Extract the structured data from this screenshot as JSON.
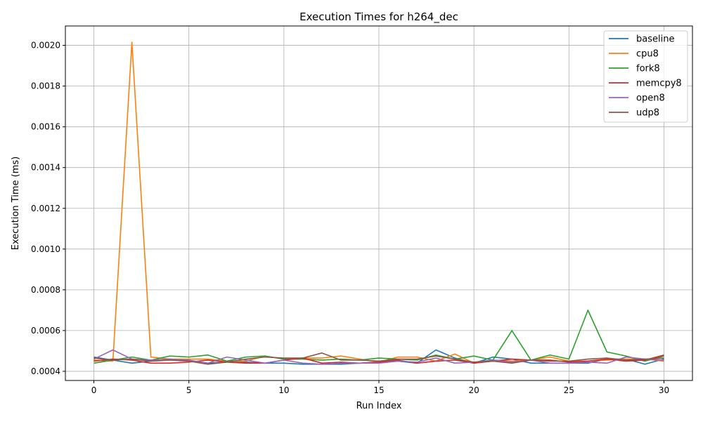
{
  "chart_data": {
    "type": "line",
    "title": "Execution Times for h264_dec",
    "xlabel": "Run Index",
    "ylabel": "Execution Time (ms)",
    "xlim": [
      -1.5,
      31.5
    ],
    "ylim": [
      0.000355,
      0.002095
    ],
    "xticks": [
      0,
      5,
      10,
      15,
      20,
      25,
      30
    ],
    "xtick_labels": [
      "0",
      "5",
      "10",
      "15",
      "20",
      "25",
      "30"
    ],
    "yticks": [
      0.0004,
      0.0006,
      0.0008,
      0.001,
      0.0012,
      0.0014,
      0.0016,
      0.0018,
      0.002
    ],
    "ytick_labels": [
      "0.0004",
      "0.0006",
      "0.0008",
      "0.0010",
      "0.0012",
      "0.0014",
      "0.0016",
      "0.0018",
      "0.0020"
    ],
    "grid": true,
    "legend_position": "top-right",
    "x": [
      0,
      1,
      2,
      3,
      4,
      5,
      6,
      7,
      8,
      9,
      10,
      11,
      12,
      13,
      14,
      15,
      16,
      17,
      18,
      19,
      20,
      21,
      22,
      23,
      24,
      25,
      26,
      27,
      28,
      29,
      30
    ],
    "series": [
      {
        "name": "baseline",
        "color": "#1f77b4",
        "values": [
          0.00047,
          0.000455,
          0.00044,
          0.00045,
          0.00046,
          0.00045,
          0.00044,
          0.000445,
          0.000445,
          0.00044,
          0.00044,
          0.000435,
          0.000435,
          0.000435,
          0.00044,
          0.000445,
          0.00045,
          0.00044,
          0.000505,
          0.000465,
          0.00044,
          0.00047,
          0.00046,
          0.00044,
          0.00044,
          0.00044,
          0.00044,
          0.00046,
          0.00046,
          0.000435,
          0.00046
        ]
      },
      {
        "name": "cpu8",
        "color": "#ff7f0e",
        "values": [
          0.000455,
          0.00045,
          0.002015,
          0.00047,
          0.00046,
          0.00046,
          0.00046,
          0.00045,
          0.00045,
          0.000475,
          0.00046,
          0.000465,
          0.000465,
          0.000475,
          0.00046,
          0.000445,
          0.00047,
          0.00047,
          0.00045,
          0.000485,
          0.00044,
          0.000455,
          0.00045,
          0.000455,
          0.00047,
          0.00045,
          0.00045,
          0.000455,
          0.00046,
          0.00046,
          0.00045
        ]
      },
      {
        "name": "fork8",
        "color": "#2ca02c",
        "values": [
          0.00044,
          0.000455,
          0.00047,
          0.000455,
          0.000475,
          0.00047,
          0.00048,
          0.00045,
          0.00047,
          0.000475,
          0.00046,
          0.00046,
          0.000455,
          0.00046,
          0.000455,
          0.000465,
          0.00046,
          0.000455,
          0.00048,
          0.00046,
          0.000475,
          0.000455,
          0.0006,
          0.000455,
          0.00048,
          0.00046,
          0.0007,
          0.000495,
          0.000475,
          0.00045,
          0.000475
        ]
      },
      {
        "name": "memcpy8",
        "color": "#d62728",
        "values": [
          0.00045,
          0.00046,
          0.000455,
          0.00044,
          0.00044,
          0.000445,
          0.000455,
          0.000445,
          0.00044,
          0.00044,
          0.000455,
          0.000465,
          0.00044,
          0.000445,
          0.00044,
          0.000445,
          0.000455,
          0.00044,
          0.00045,
          0.000455,
          0.00044,
          0.00045,
          0.00046,
          0.000455,
          0.000455,
          0.000445,
          0.00045,
          0.00046,
          0.00045,
          0.000455,
          0.00048
        ]
      },
      {
        "name": "open8",
        "color": "#9467bd",
        "values": [
          0.00046,
          0.000505,
          0.00046,
          0.000455,
          0.00046,
          0.000455,
          0.00044,
          0.00047,
          0.000455,
          0.00044,
          0.000455,
          0.00044,
          0.000435,
          0.00044,
          0.00044,
          0.00044,
          0.00045,
          0.000445,
          0.000465,
          0.00044,
          0.000445,
          0.000455,
          0.000445,
          0.000455,
          0.00044,
          0.00044,
          0.000445,
          0.00044,
          0.00047,
          0.00046,
          0.000455
        ]
      },
      {
        "name": "udp8",
        "color": "#8c564b",
        "values": [
          0.000465,
          0.000455,
          0.00046,
          0.00045,
          0.000455,
          0.00045,
          0.000435,
          0.000445,
          0.00046,
          0.00047,
          0.000465,
          0.000465,
          0.00049,
          0.000455,
          0.000455,
          0.00045,
          0.00046,
          0.00046,
          0.000475,
          0.00046,
          0.000445,
          0.00045,
          0.00044,
          0.000455,
          0.00045,
          0.00045,
          0.00046,
          0.000465,
          0.000455,
          0.00046,
          0.000465
        ]
      }
    ]
  }
}
